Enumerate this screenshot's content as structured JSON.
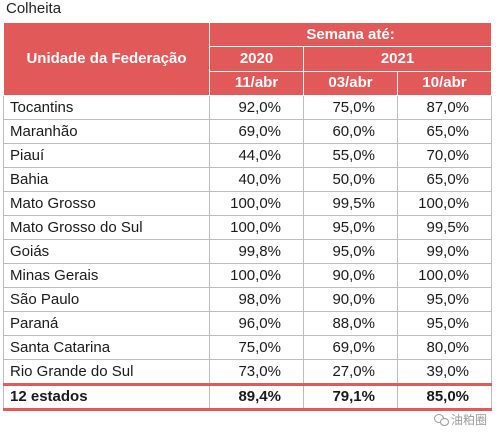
{
  "caption": "Colheita",
  "header": {
    "uf_label": "Unidade da Federação",
    "week_label": "Semana até:",
    "years": [
      "2020",
      "2021"
    ],
    "dates": [
      "11/abr",
      "03/abr",
      "10/abr"
    ]
  },
  "rows": [
    {
      "uf": "Tocantins",
      "v": [
        "92,0%",
        "75,0%",
        "87,0%"
      ]
    },
    {
      "uf": "Maranhão",
      "v": [
        "69,0%",
        "60,0%",
        "65,0%"
      ]
    },
    {
      "uf": "Piauí",
      "v": [
        "44,0%",
        "55,0%",
        "70,0%"
      ]
    },
    {
      "uf": "Bahia",
      "v": [
        "40,0%",
        "50,0%",
        "65,0%"
      ]
    },
    {
      "uf": "Mato Grosso",
      "v": [
        "100,0%",
        "99,5%",
        "100,0%"
      ]
    },
    {
      "uf": "Mato Grosso do Sul",
      "v": [
        "100,0%",
        "95,0%",
        "99,5%"
      ]
    },
    {
      "uf": "Goiás",
      "v": [
        "99,8%",
        "95,0%",
        "99,0%"
      ]
    },
    {
      "uf": "Minas Gerais",
      "v": [
        "100,0%",
        "90,0%",
        "100,0%"
      ]
    },
    {
      "uf": "São Paulo",
      "v": [
        "98,0%",
        "90,0%",
        "95,0%"
      ]
    },
    {
      "uf": "Paraná",
      "v": [
        "96,0%",
        "88,0%",
        "95,0%"
      ]
    },
    {
      "uf": "Santa Catarina",
      "v": [
        "75,0%",
        "69,0%",
        "80,0%"
      ]
    },
    {
      "uf": "Rio Grande do Sul",
      "v": [
        "73,0%",
        "27,0%",
        "39,0%"
      ]
    }
  ],
  "total": {
    "uf": "12 estados",
    "v": [
      "89,4%",
      "79,1%",
      "85,0%"
    ]
  },
  "watermark": {
    "text": "油粕圈",
    "icon": "wechat-icon"
  },
  "colors": {
    "header_bg": "#e15a59",
    "header_text": "#ffffff",
    "grid": "#bdbdbd"
  }
}
